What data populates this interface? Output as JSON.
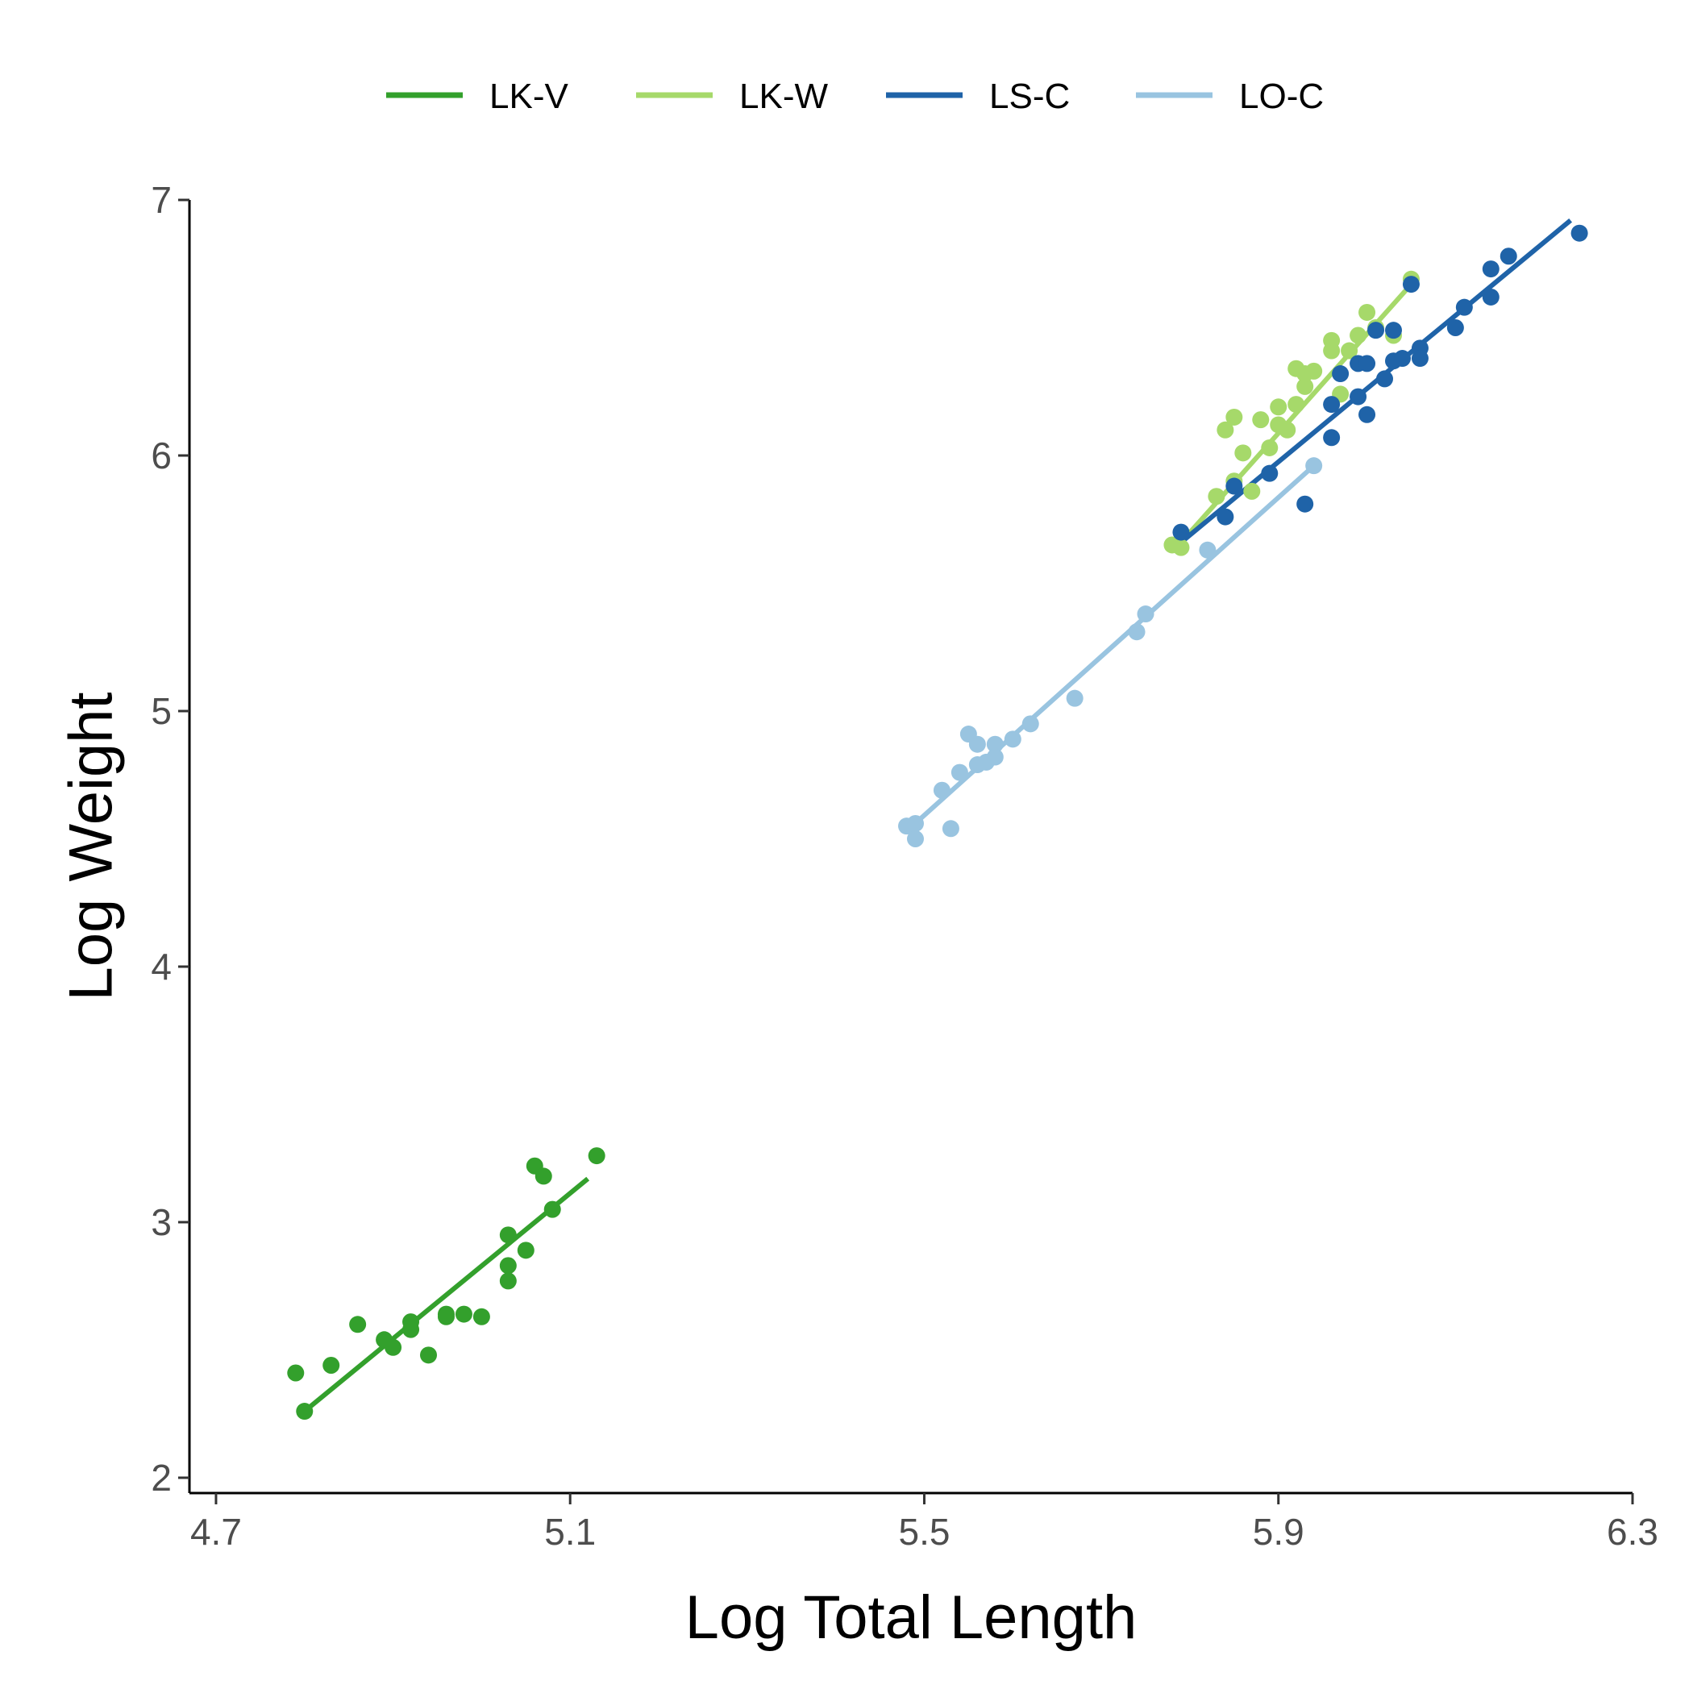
{
  "chart_data": {
    "type": "scatter",
    "title": "",
    "xlabel": "Log Total Length",
    "ylabel": "Log Weight",
    "xlim": [
      4.67,
      6.3
    ],
    "ylim": [
      1.94,
      7.0
    ],
    "x_ticks": [
      4.7,
      5.1,
      5.5,
      5.9,
      6.3
    ],
    "y_ticks": [
      2,
      3,
      4,
      5,
      6,
      7
    ],
    "grid": false,
    "legend_position": "top",
    "series": [
      {
        "name": "LK-V",
        "color": "#33a02c",
        "points": [
          [
            4.79,
            2.41
          ],
          [
            4.8,
            2.26
          ],
          [
            4.83,
            2.44
          ],
          [
            4.86,
            2.6
          ],
          [
            4.89,
            2.54
          ],
          [
            4.9,
            2.51
          ],
          [
            4.92,
            2.58
          ],
          [
            4.92,
            2.61
          ],
          [
            4.94,
            2.48
          ],
          [
            4.96,
            2.64
          ],
          [
            4.96,
            2.63
          ],
          [
            4.98,
            2.64
          ],
          [
            5.0,
            2.63
          ],
          [
            5.03,
            2.95
          ],
          [
            5.03,
            2.83
          ],
          [
            5.03,
            2.77
          ],
          [
            5.05,
            2.89
          ],
          [
            5.06,
            3.22
          ],
          [
            5.07,
            3.18
          ],
          [
            5.08,
            3.05
          ],
          [
            5.13,
            3.26
          ]
        ],
        "fit": [
          [
            4.8,
            2.26
          ],
          [
            5.12,
            3.17
          ]
        ]
      },
      {
        "name": "LK-W",
        "color": "#a6d96a",
        "points": [
          [
            5.78,
            5.65
          ],
          [
            5.79,
            5.64
          ],
          [
            5.83,
            5.84
          ],
          [
            5.84,
            6.1
          ],
          [
            5.85,
            6.15
          ],
          [
            5.85,
            5.9
          ],
          [
            5.86,
            6.01
          ],
          [
            5.87,
            5.86
          ],
          [
            5.88,
            6.14
          ],
          [
            5.89,
            6.03
          ],
          [
            5.9,
            6.12
          ],
          [
            5.9,
            6.19
          ],
          [
            5.91,
            6.1
          ],
          [
            5.92,
            6.34
          ],
          [
            5.92,
            6.2
          ],
          [
            5.93,
            6.27
          ],
          [
            5.93,
            6.32
          ],
          [
            5.94,
            6.33
          ],
          [
            5.96,
            6.45
          ],
          [
            5.96,
            6.41
          ],
          [
            5.97,
            6.24
          ],
          [
            5.98,
            6.41
          ],
          [
            5.99,
            6.47
          ],
          [
            6.0,
            6.56
          ],
          [
            6.01,
            6.5
          ],
          [
            6.03,
            6.47
          ],
          [
            6.05,
            6.69
          ]
        ],
        "fit": [
          [
            5.79,
            5.66
          ],
          [
            6.05,
            6.67
          ]
        ]
      },
      {
        "name": "LS-C",
        "color": "#1f63a8",
        "points": [
          [
            5.79,
            5.7
          ],
          [
            5.84,
            5.76
          ],
          [
            5.85,
            5.88
          ],
          [
            5.89,
            5.93
          ],
          [
            5.93,
            5.81
          ],
          [
            5.96,
            6.07
          ],
          [
            5.96,
            6.2
          ],
          [
            5.97,
            6.32
          ],
          [
            5.99,
            6.36
          ],
          [
            5.99,
            6.23
          ],
          [
            6.0,
            6.36
          ],
          [
            6.0,
            6.16
          ],
          [
            6.01,
            6.49
          ],
          [
            6.02,
            6.3
          ],
          [
            6.03,
            6.37
          ],
          [
            6.03,
            6.49
          ],
          [
            6.04,
            6.38
          ],
          [
            6.05,
            6.67
          ],
          [
            6.06,
            6.42
          ],
          [
            6.06,
            6.38
          ],
          [
            6.1,
            6.5
          ],
          [
            6.11,
            6.58
          ],
          [
            6.14,
            6.62
          ],
          [
            6.14,
            6.73
          ],
          [
            6.16,
            6.78
          ],
          [
            6.24,
            6.87
          ]
        ],
        "fit": [
          [
            5.79,
            5.66
          ],
          [
            6.23,
            6.92
          ]
        ]
      },
      {
        "name": "LO-C",
        "color": "#99c4e0",
        "points": [
          [
            5.48,
            4.55
          ],
          [
            5.49,
            4.5
          ],
          [
            5.49,
            4.56
          ],
          [
            5.52,
            4.69
          ],
          [
            5.53,
            4.54
          ],
          [
            5.54,
            4.76
          ],
          [
            5.55,
            4.91
          ],
          [
            5.56,
            4.87
          ],
          [
            5.56,
            4.79
          ],
          [
            5.57,
            4.8
          ],
          [
            5.58,
            4.87
          ],
          [
            5.58,
            4.82
          ],
          [
            5.6,
            4.89
          ],
          [
            5.62,
            4.95
          ],
          [
            5.67,
            5.05
          ],
          [
            5.74,
            5.31
          ],
          [
            5.75,
            5.38
          ],
          [
            5.82,
            5.63
          ],
          [
            5.94,
            5.96
          ]
        ],
        "fit": [
          [
            5.48,
            4.53
          ],
          [
            5.94,
            5.96
          ]
        ]
      }
    ]
  }
}
